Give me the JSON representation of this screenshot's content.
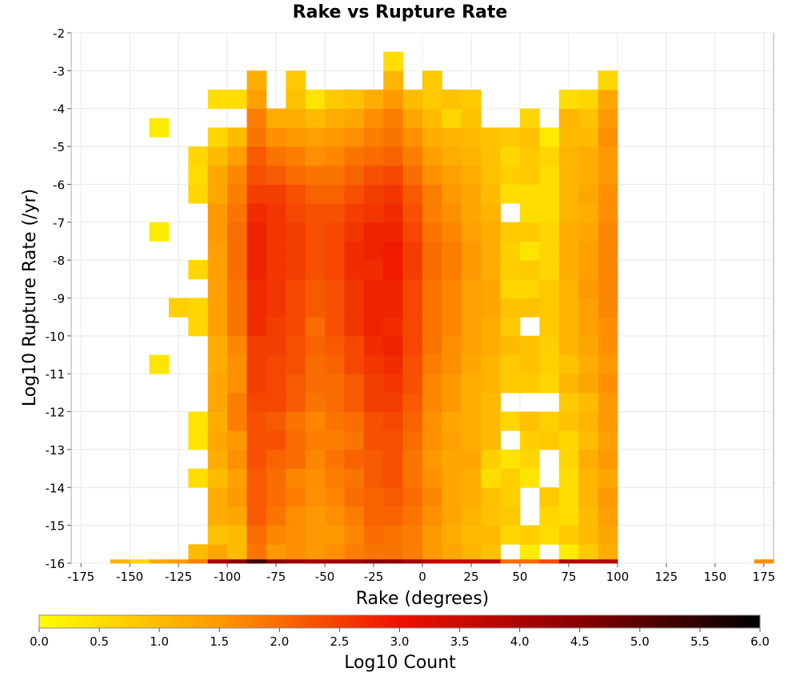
{
  "chart_data": {
    "type": "heatmap",
    "title": "Rake vs Rupture Rate",
    "xlabel": "Rake (degrees)",
    "ylabel": "Log10 Rupture Rate (/yr)",
    "colorbar_label": "Log10 Count",
    "xlim": [
      -180,
      180
    ],
    "ylim": [
      -16,
      -2
    ],
    "x_ticks": [
      "-175",
      "-150",
      "-125",
      "-100",
      "-75",
      "-50",
      "-25",
      "0",
      "25",
      "50",
      "75",
      "100",
      "125",
      "150",
      "175"
    ],
    "x_tick_values": [
      -175,
      -150,
      -125,
      -100,
      -75,
      -50,
      -25,
      0,
      25,
      50,
      75,
      100,
      125,
      150,
      175
    ],
    "y_ticks": [
      "-2",
      "-3",
      "-4",
      "-5",
      "-6",
      "-7",
      "-8",
      "-9",
      "-10",
      "-11",
      "-12",
      "-13",
      "-14",
      "-15",
      "-16"
    ],
    "y_tick_values": [
      -2,
      -3,
      -4,
      -5,
      -6,
      -7,
      -8,
      -9,
      -10,
      -11,
      -12,
      -13,
      -14,
      -15,
      -16
    ],
    "colorbar_ticks": [
      "0.0",
      "0.5",
      "1.0",
      "1.5",
      "2.0",
      "2.5",
      "3.0",
      "3.5",
      "4.0",
      "4.5",
      "5.0",
      "5.5",
      "6.0"
    ],
    "colorbar_tick_values": [
      0,
      0.5,
      1,
      1.5,
      2,
      2.5,
      3,
      3.5,
      4,
      4.5,
      5,
      5.5,
      6
    ],
    "color_range": [
      0,
      6
    ],
    "colormap": [
      "#ffff00",
      "#ff9900",
      "#ee1100",
      "#880000",
      "#000000"
    ],
    "bin_width_x": 10,
    "bin_width_y": 0.5,
    "x_bin_centers": [
      -155,
      -145,
      -135,
      -125,
      -115,
      -105,
      -95,
      -85,
      -75,
      -65,
      -55,
      -45,
      -35,
      -25,
      -15,
      -5,
      5,
      15,
      25,
      35,
      45,
      55,
      65,
      75,
      85,
      95,
      175
    ],
    "rows": [
      {
        "y": -15.75,
        "values": [
          null,
          null,
          null,
          null,
          1.0,
          1.3,
          1.0,
          1.9,
          1.5,
          1.6,
          1.5,
          1.6,
          1.8,
          1.9,
          1.9,
          1.8,
          1.5,
          1.3,
          1.1,
          0.9,
          null,
          0.3,
          null,
          0.3,
          0.8,
          1.2,
          null
        ]
      },
      {
        "y": -15.25,
        "values": [
          null,
          null,
          null,
          null,
          null,
          0.9,
          1.0,
          2.0,
          1.7,
          1.6,
          1.5,
          1.5,
          1.7,
          2.0,
          1.9,
          1.8,
          1.5,
          1.2,
          1.0,
          1.0,
          0.6,
          0.7,
          0.5,
          0.8,
          1.0,
          1.3,
          null
        ]
      },
      {
        "y": -14.75,
        "values": [
          null,
          null,
          null,
          null,
          null,
          1.2,
          1.3,
          2.2,
          1.9,
          1.6,
          1.5,
          1.6,
          1.8,
          2.1,
          2.1,
          1.9,
          1.6,
          1.3,
          1.1,
          0.9,
          0.8,
          null,
          0.6,
          0.5,
          1.0,
          1.4,
          null
        ]
      },
      {
        "y": -14.25,
        "values": [
          null,
          null,
          null,
          null,
          null,
          1.2,
          1.5,
          2.2,
          2.0,
          1.8,
          1.6,
          1.7,
          2.0,
          2.1,
          2.2,
          2.0,
          1.7,
          1.3,
          1.2,
          0.9,
          0.7,
          null,
          0.8,
          0.5,
          1.1,
          1.5,
          null
        ]
      },
      {
        "y": -13.75,
        "values": [
          null,
          null,
          null,
          null,
          0.5,
          1.0,
          1.4,
          2.2,
          2.0,
          1.7,
          1.6,
          1.8,
          1.9,
          2.2,
          2.3,
          1.9,
          1.6,
          1.3,
          1.2,
          0.5,
          0.7,
          0.4,
          null,
          0.5,
          1.1,
          1.3,
          null
        ]
      },
      {
        "y": -13.25,
        "values": [
          null,
          null,
          null,
          null,
          null,
          1.2,
          1.6,
          2.3,
          2.1,
          2.0,
          1.7,
          1.9,
          2.1,
          2.2,
          2.3,
          1.9,
          1.5,
          1.3,
          1.3,
          0.7,
          0.4,
          0.6,
          null,
          0.6,
          1.2,
          1.5,
          null
        ]
      },
      {
        "y": -12.75,
        "values": [
          null,
          null,
          null,
          null,
          0.4,
          1.3,
          1.5,
          2.3,
          2.3,
          2.0,
          1.8,
          1.8,
          1.9,
          2.3,
          2.3,
          2.0,
          1.6,
          1.4,
          1.2,
          1.0,
          null,
          0.7,
          0.8,
          0.6,
          1.0,
          1.4,
          null
        ]
      },
      {
        "y": -12.25,
        "values": [
          null,
          null,
          null,
          null,
          0.4,
          1.2,
          1.8,
          2.3,
          2.2,
          1.9,
          1.7,
          1.9,
          2.0,
          2.3,
          2.4,
          2.1,
          1.6,
          1.3,
          1.2,
          1.0,
          0.6,
          0.9,
          0.7,
          0.9,
          1.1,
          1.5,
          null
        ]
      },
      {
        "y": -11.75,
        "values": [
          null,
          null,
          null,
          null,
          null,
          1.3,
          1.8,
          2.4,
          2.4,
          2.2,
          1.9,
          2.0,
          2.2,
          2.5,
          2.5,
          2.2,
          1.7,
          1.5,
          1.2,
          1.0,
          null,
          null,
          null,
          0.8,
          1.0,
          1.5,
          null
        ]
      },
      {
        "y": -11.25,
        "values": [
          null,
          null,
          null,
          null,
          null,
          1.3,
          1.6,
          2.5,
          2.4,
          2.2,
          2.0,
          2.0,
          2.2,
          2.5,
          2.6,
          2.3,
          1.7,
          1.5,
          1.2,
          1.1,
          0.8,
          0.8,
          0.6,
          1.1,
          1.3,
          1.6,
          null
        ]
      },
      {
        "y": -10.75,
        "values": [
          null,
          null,
          0.4,
          null,
          null,
          1.2,
          1.6,
          2.5,
          2.4,
          2.3,
          2.0,
          2.1,
          2.4,
          2.6,
          2.7,
          2.3,
          1.8,
          1.6,
          1.3,
          1.1,
          0.8,
          0.9,
          0.7,
          0.9,
          1.2,
          1.5,
          null
        ]
      },
      {
        "y": -10.25,
        "values": [
          null,
          null,
          null,
          null,
          null,
          1.2,
          1.7,
          2.5,
          2.5,
          2.3,
          2.1,
          2.2,
          2.4,
          2.7,
          2.8,
          2.4,
          1.9,
          1.6,
          1.4,
          1.2,
          1.0,
          0.9,
          0.7,
          1.1,
          1.3,
          1.6,
          null
        ]
      },
      {
        "y": -9.75,
        "values": [
          null,
          null,
          null,
          null,
          0.6,
          1.4,
          1.9,
          2.7,
          2.5,
          2.4,
          2.0,
          2.3,
          2.6,
          2.8,
          2.7,
          2.4,
          1.9,
          1.7,
          1.4,
          1.2,
          0.8,
          null,
          0.8,
          1.1,
          1.4,
          1.6,
          null
        ]
      },
      {
        "y": -9.25,
        "values": [
          null,
          null,
          null,
          0.7,
          0.6,
          1.4,
          1.9,
          2.7,
          2.6,
          2.4,
          2.2,
          2.3,
          2.6,
          2.8,
          2.8,
          2.4,
          1.9,
          1.7,
          1.4,
          1.3,
          0.9,
          0.9,
          0.8,
          1.1,
          1.4,
          1.7,
          null
        ]
      },
      {
        "y": -8.75,
        "values": [
          null,
          null,
          null,
          null,
          null,
          1.4,
          1.9,
          2.7,
          2.6,
          2.4,
          2.2,
          2.3,
          2.6,
          2.8,
          2.8,
          2.4,
          1.9,
          1.7,
          1.4,
          1.3,
          0.6,
          0.6,
          0.8,
          1.1,
          1.5,
          1.7,
          null
        ]
      },
      {
        "y": -8.25,
        "values": [
          null,
          null,
          null,
          null,
          0.6,
          1.4,
          2.0,
          2.8,
          2.6,
          2.5,
          2.3,
          2.4,
          2.7,
          2.7,
          2.9,
          2.5,
          2.0,
          1.8,
          1.5,
          1.2,
          0.7,
          0.8,
          0.6,
          1.2,
          1.4,
          1.7,
          null
        ]
      },
      {
        "y": -7.75,
        "values": [
          null,
          null,
          null,
          null,
          null,
          1.4,
          2.0,
          2.8,
          2.6,
          2.5,
          2.3,
          2.4,
          2.7,
          2.8,
          2.9,
          2.5,
          2.0,
          1.8,
          1.5,
          1.2,
          0.7,
          0.4,
          0.6,
          1.2,
          1.4,
          1.7,
          null
        ]
      },
      {
        "y": -7.25,
        "values": [
          null,
          null,
          0.3,
          null,
          null,
          1.5,
          2.0,
          2.8,
          2.6,
          2.5,
          2.3,
          2.4,
          2.6,
          2.8,
          2.8,
          2.4,
          1.9,
          1.7,
          1.4,
          1.2,
          0.8,
          0.8,
          0.6,
          1.2,
          1.3,
          1.7,
          null
        ]
      },
      {
        "y": -6.75,
        "values": [
          null,
          null,
          null,
          null,
          null,
          1.5,
          1.9,
          2.7,
          2.6,
          2.4,
          2.3,
          2.3,
          2.5,
          2.6,
          2.7,
          2.3,
          1.8,
          1.6,
          1.3,
          1.1,
          null,
          0.5,
          0.5,
          1.1,
          1.2,
          1.6,
          null
        ]
      },
      {
        "y": -6.25,
        "values": [
          null,
          null,
          null,
          null,
          0.6,
          1.3,
          1.8,
          2.5,
          2.5,
          2.3,
          2.1,
          2.1,
          2.3,
          2.5,
          2.6,
          2.2,
          1.8,
          1.5,
          1.3,
          1.0,
          0.5,
          0.5,
          0.5,
          1.1,
          1.3,
          1.6,
          null
        ]
      },
      {
        "y": -5.75,
        "values": [
          null,
          null,
          null,
          null,
          0.5,
          1.3,
          1.7,
          2.3,
          2.2,
          2.0,
          1.9,
          1.9,
          2.1,
          2.3,
          2.4,
          2.0,
          1.6,
          1.4,
          1.2,
          0.9,
          0.7,
          0.8,
          0.5,
          1.1,
          1.2,
          1.5,
          null
        ]
      },
      {
        "y": -5.25,
        "values": [
          null,
          null,
          null,
          null,
          0.6,
          1.0,
          1.4,
          2.2,
          1.9,
          1.8,
          1.6,
          1.7,
          1.9,
          2.0,
          2.1,
          1.8,
          1.4,
          1.2,
          1.1,
          0.9,
          0.6,
          0.8,
          0.6,
          1.1,
          1.2,
          1.5,
          null
        ]
      },
      {
        "y": -4.75,
        "values": [
          null,
          null,
          null,
          null,
          null,
          0.6,
          1.0,
          1.9,
          1.6,
          1.5,
          1.4,
          1.5,
          1.6,
          1.8,
          1.9,
          1.6,
          1.2,
          1.1,
          1.0,
          0.9,
          0.8,
          0.9,
          0.3,
          1.0,
          1.0,
          1.6,
          null
        ]
      },
      {
        "y": -4.25,
        "values": [
          null,
          null,
          null,
          null,
          null,
          null,
          null,
          1.8,
          1.2,
          1.2,
          1.0,
          1.2,
          1.3,
          1.6,
          1.8,
          1.3,
          1.0,
          0.6,
          0.9,
          null,
          null,
          0.6,
          null,
          1.1,
          0.9,
          1.5,
          null
        ]
      },
      {
        "y": -3.75,
        "values": [
          null,
          null,
          null,
          null,
          null,
          0.5,
          0.5,
          1.4,
          null,
          0.9,
          0.4,
          0.8,
          0.9,
          1.2,
          1.5,
          1.0,
          0.8,
          0.9,
          0.8,
          null,
          null,
          null,
          null,
          0.5,
          0.6,
          1.3,
          null
        ]
      },
      {
        "y": -3.25,
        "values": [
          null,
          null,
          null,
          null,
          null,
          null,
          null,
          1.2,
          null,
          0.8,
          null,
          null,
          null,
          null,
          1.1,
          null,
          0.8,
          null,
          null,
          null,
          null,
          null,
          null,
          null,
          null,
          0.6,
          null
        ]
      },
      {
        "y": -2.75,
        "values": [
          null,
          null,
          null,
          null,
          null,
          null,
          null,
          null,
          null,
          null,
          null,
          null,
          null,
          null,
          0.5,
          null,
          null,
          null,
          null,
          null,
          null,
          null,
          null,
          null,
          null,
          null,
          null
        ]
      }
    ],
    "extra_cells": [
      {
        "x": -135,
        "y": -4.5,
        "value": 0.3
      }
    ],
    "bottom_row": {
      "y": -15.95,
      "x_bin_centers": [
        -155,
        -145,
        -135,
        -125,
        -115,
        -105,
        -95,
        -85,
        -75,
        -65,
        -55,
        -45,
        -35,
        -25,
        -15,
        -5,
        5,
        15,
        25,
        35,
        45,
        55,
        65,
        75,
        85,
        95,
        175
      ],
      "values": [
        1.1,
        0.6,
        1.3,
        1.5,
        1.8,
        4.0,
        4.5,
        5.3,
        4.5,
        4.2,
        4.1,
        4.1,
        4.2,
        4.5,
        4.4,
        4.1,
        3.7,
        3.5,
        3.6,
        3.7,
        2.0,
        2.0,
        2.4,
        3.9,
        3.8,
        3.9,
        1.6
      ]
    },
    "grid": true
  }
}
